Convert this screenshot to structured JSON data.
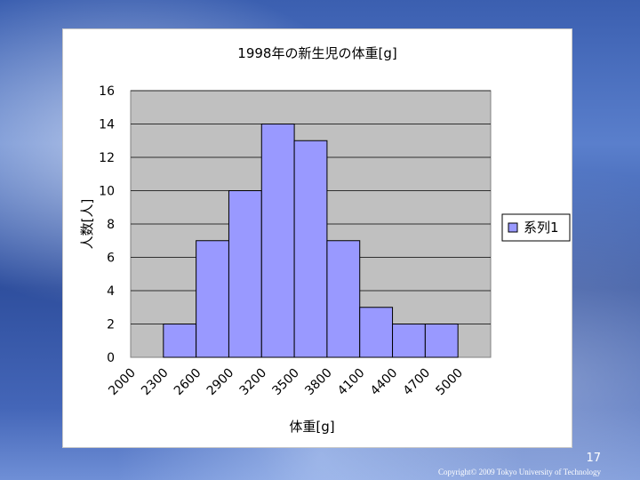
{
  "slide": {
    "number": "17",
    "copyright": "Copyright© 2009 Tokyo University of Technology"
  },
  "colors": {
    "plot_background": "#c0c0c0",
    "bar_fill": "#9999ff",
    "bar_stroke": "#000000",
    "gridline": "#000000"
  },
  "chart_data": {
    "type": "bar",
    "title": "1998年の新生児の体重[g]",
    "xlabel": "体重[g]",
    "ylabel": "人数[人]",
    "x_ticks": [
      "2000",
      "2300",
      "2600",
      "2900",
      "3200",
      "3500",
      "3800",
      "4100",
      "4400",
      "4700",
      "5000"
    ],
    "bins": [
      {
        "from": 2000,
        "to": 2300,
        "value": 0
      },
      {
        "from": 2300,
        "to": 2600,
        "value": 2
      },
      {
        "from": 2600,
        "to": 2900,
        "value": 7
      },
      {
        "from": 2900,
        "to": 3200,
        "value": 10
      },
      {
        "from": 3200,
        "to": 3500,
        "value": 14
      },
      {
        "from": 3500,
        "to": 3800,
        "value": 13
      },
      {
        "from": 3800,
        "to": 4100,
        "value": 7
      },
      {
        "from": 4100,
        "to": 4400,
        "value": 3
      },
      {
        "from": 4400,
        "to": 4700,
        "value": 2
      },
      {
        "from": 4700,
        "to": 5000,
        "value": 2
      }
    ],
    "ylim": [
      0,
      16
    ],
    "y_ticks": [
      0,
      2,
      4,
      6,
      8,
      10,
      12,
      14,
      16
    ],
    "grid": true,
    "legend": {
      "position": "right",
      "entries": [
        "系列1"
      ]
    }
  }
}
